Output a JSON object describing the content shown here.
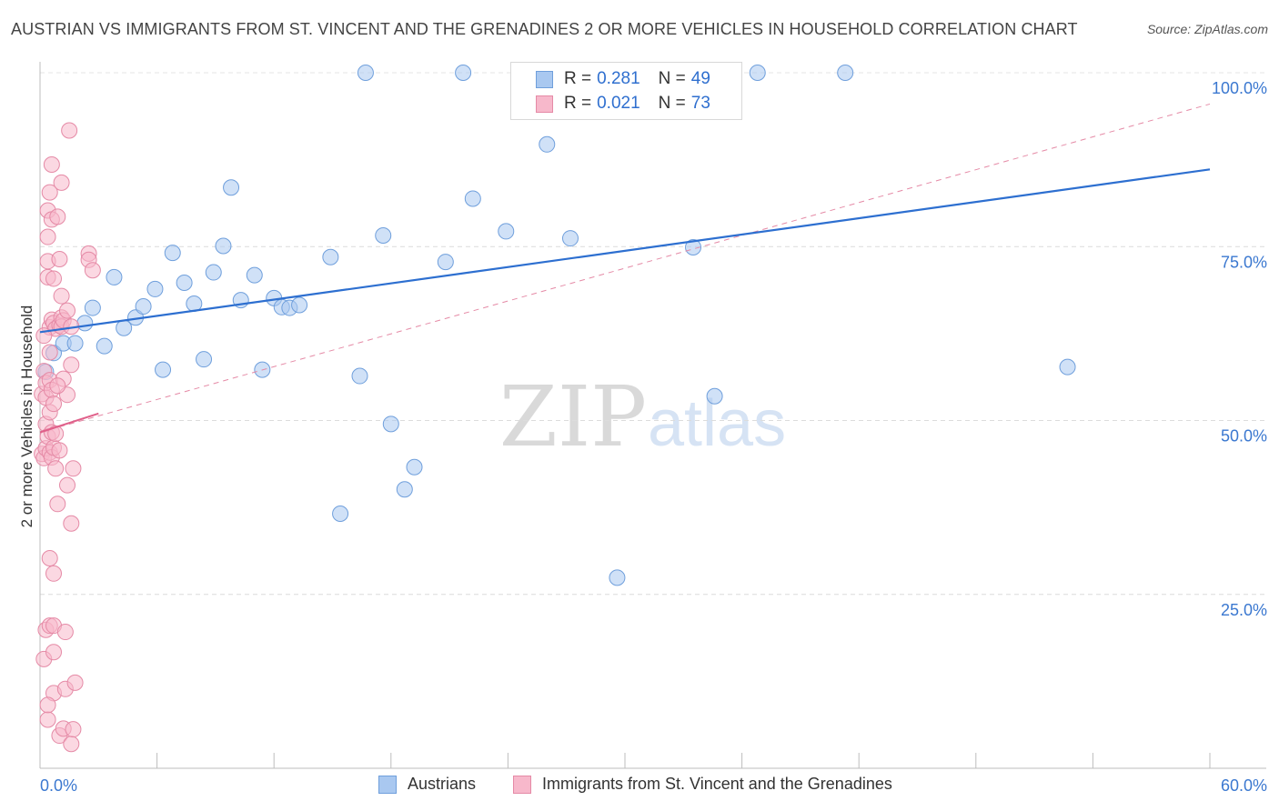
{
  "title": "AUSTRIAN VS IMMIGRANTS FROM ST. VINCENT AND THE GRENADINES 2 OR MORE VEHICLES IN HOUSEHOLD CORRELATION CHART",
  "source": "Source: ZipAtlas.com",
  "watermark": {
    "zip": "ZIP",
    "atlas": "atlas"
  },
  "legend": {
    "rows": [
      {
        "r_label": "R = ",
        "r_value": "0.281",
        "n_label": "N = ",
        "n_value": "49",
        "color": "#a9c8f0",
        "border": "#6f9fdc"
      },
      {
        "r_label": "R = ",
        "r_value": "0.021",
        "n_label": "N = ",
        "n_value": "73",
        "color": "#f7b8cb",
        "border": "#e58aa6"
      }
    ]
  },
  "bottom_legend": [
    {
      "label": "Austrians",
      "color": "#a9c8f0",
      "border": "#6f9fdc"
    },
    {
      "label": "Immigrants from St. Vincent and the Grenadines",
      "color": "#f7b8cb",
      "border": "#e58aa6"
    }
  ],
  "chart_data": {
    "type": "scatter",
    "title": "AUSTRIAN VS IMMIGRANTS FROM ST. VINCENT AND THE GRENADINES 2 OR MORE VEHICLES IN HOUSEHOLD CORRELATION CHART",
    "xlabel": "",
    "ylabel": "2 or more Vehicles in Household",
    "xlim": [
      0,
      60
    ],
    "ylim": [
      0,
      100
    ],
    "x_tick_labels": [
      "0.0%",
      "60.0%"
    ],
    "y_tick_labels": [
      {
        "value": 25,
        "label": "25.0%"
      },
      {
        "value": 50,
        "label": "50.0%"
      },
      {
        "value": 75,
        "label": "75.0%"
      },
      {
        "value": 100,
        "label": "100.0%"
      }
    ],
    "grid": true,
    "legend_position": "top-center",
    "series": [
      {
        "name": "Austrians",
        "color": "#a9c8f0",
        "stroke": "#6f9fdc",
        "trend": {
          "x": [
            0,
            60
          ],
          "y": [
            62.7,
            86.1
          ],
          "color": "#2d6fd0",
          "style": "solid"
        },
        "points": [
          [
            0.3,
            57.0
          ],
          [
            0.7,
            59.7
          ],
          [
            1.2,
            61.1
          ],
          [
            1.8,
            61.1
          ],
          [
            2.3,
            64.0
          ],
          [
            2.7,
            66.2
          ],
          [
            3.3,
            60.7
          ],
          [
            3.8,
            70.6
          ],
          [
            4.3,
            63.3
          ],
          [
            4.9,
            64.8
          ],
          [
            5.3,
            66.4
          ],
          [
            5.9,
            68.9
          ],
          [
            6.3,
            57.3
          ],
          [
            6.8,
            74.1
          ],
          [
            7.4,
            69.8
          ],
          [
            7.9,
            66.8
          ],
          [
            8.4,
            58.8
          ],
          [
            8.9,
            71.3
          ],
          [
            9.4,
            75.1
          ],
          [
            9.8,
            83.5
          ],
          [
            10.3,
            67.3
          ],
          [
            11.0,
            70.9
          ],
          [
            11.4,
            57.3
          ],
          [
            12.0,
            67.6
          ],
          [
            12.4,
            66.3
          ],
          [
            12.8,
            66.2
          ],
          [
            13.3,
            66.6
          ],
          [
            14.9,
            73.5
          ],
          [
            15.4,
            36.6
          ],
          [
            16.4,
            56.4
          ],
          [
            16.7,
            100.0
          ],
          [
            17.6,
            76.6
          ],
          [
            18.0,
            49.5
          ],
          [
            18.7,
            40.1
          ],
          [
            19.2,
            43.3
          ],
          [
            20.8,
            72.8
          ],
          [
            21.7,
            100.0
          ],
          [
            22.2,
            81.9
          ],
          [
            23.9,
            77.2
          ],
          [
            26.0,
            89.7
          ],
          [
            26.9,
            100.0
          ],
          [
            27.2,
            76.2
          ],
          [
            29.6,
            27.4
          ],
          [
            34.2,
            100.0
          ],
          [
            33.5,
            74.9
          ],
          [
            34.6,
            53.5
          ],
          [
            36.8,
            100.0
          ],
          [
            41.3,
            100.0
          ],
          [
            52.7,
            57.7
          ]
        ]
      },
      {
        "name": "Immigrants from St. Vincent and the Grenadines",
        "color": "#f7b8cb",
        "stroke": "#e58aa6",
        "trend": {
          "x": [
            0,
            60
          ],
          "y": [
            48.3,
            95.5
          ],
          "color": "#e58aa6",
          "style": "dashed",
          "solid_segment": {
            "x": [
              0,
              3
            ],
            "y": [
              48.3,
              51.0
            ],
            "color": "#e0608a"
          }
        },
        "points": [
          [
            0.1,
            45.2
          ],
          [
            0.1,
            53.8
          ],
          [
            0.2,
            57.1
          ],
          [
            0.2,
            15.7
          ],
          [
            0.2,
            44.6
          ],
          [
            0.3,
            19.9
          ],
          [
            0.3,
            53.3
          ],
          [
            0.3,
            55.4
          ],
          [
            0.3,
            46.0
          ],
          [
            0.3,
            49.5
          ],
          [
            0.4,
            80.2
          ],
          [
            0.4,
            76.4
          ],
          [
            0.4,
            70.6
          ],
          [
            0.4,
            72.9
          ],
          [
            0.4,
            7.0
          ],
          [
            0.4,
            47.7
          ],
          [
            0.5,
            82.8
          ],
          [
            0.5,
            63.4
          ],
          [
            0.5,
            59.8
          ],
          [
            0.5,
            55.8
          ],
          [
            0.5,
            51.2
          ],
          [
            0.5,
            45.4
          ],
          [
            0.5,
            30.2
          ],
          [
            0.5,
            20.5
          ],
          [
            0.6,
            78.9
          ],
          [
            0.6,
            86.8
          ],
          [
            0.6,
            64.5
          ],
          [
            0.6,
            54.4
          ],
          [
            0.6,
            48.3
          ],
          [
            0.6,
            44.7
          ],
          [
            0.7,
            70.4
          ],
          [
            0.7,
            64.0
          ],
          [
            0.7,
            52.4
          ],
          [
            0.7,
            46.1
          ],
          [
            0.7,
            28.0
          ],
          [
            0.7,
            20.5
          ],
          [
            0.7,
            16.7
          ],
          [
            0.7,
            10.8
          ],
          [
            0.8,
            63.2
          ],
          [
            0.8,
            48.1
          ],
          [
            0.8,
            43.1
          ],
          [
            0.9,
            79.3
          ],
          [
            0.9,
            38.0
          ],
          [
            1.0,
            73.2
          ],
          [
            1.0,
            63.7
          ],
          [
            1.0,
            45.7
          ],
          [
            1.0,
            4.7
          ],
          [
            1.1,
            84.2
          ],
          [
            1.1,
            67.9
          ],
          [
            1.1,
            64.8
          ],
          [
            1.1,
            63.5
          ],
          [
            1.2,
            64.4
          ],
          [
            1.2,
            56.0
          ],
          [
            1.2,
            5.7
          ],
          [
            1.3,
            19.6
          ],
          [
            1.3,
            11.4
          ],
          [
            1.4,
            65.8
          ],
          [
            1.4,
            53.7
          ],
          [
            1.4,
            40.7
          ],
          [
            1.5,
            91.7
          ],
          [
            1.6,
            63.5
          ],
          [
            1.6,
            35.2
          ],
          [
            1.6,
            3.5
          ],
          [
            1.7,
            43.1
          ],
          [
            1.7,
            5.6
          ],
          [
            1.8,
            12.3
          ],
          [
            2.5,
            74.0
          ],
          [
            2.5,
            73.1
          ],
          [
            2.7,
            71.6
          ],
          [
            0.2,
            62.2
          ],
          [
            0.4,
            9.1
          ],
          [
            1.6,
            58.0
          ],
          [
            0.9,
            55.0
          ]
        ]
      }
    ]
  }
}
